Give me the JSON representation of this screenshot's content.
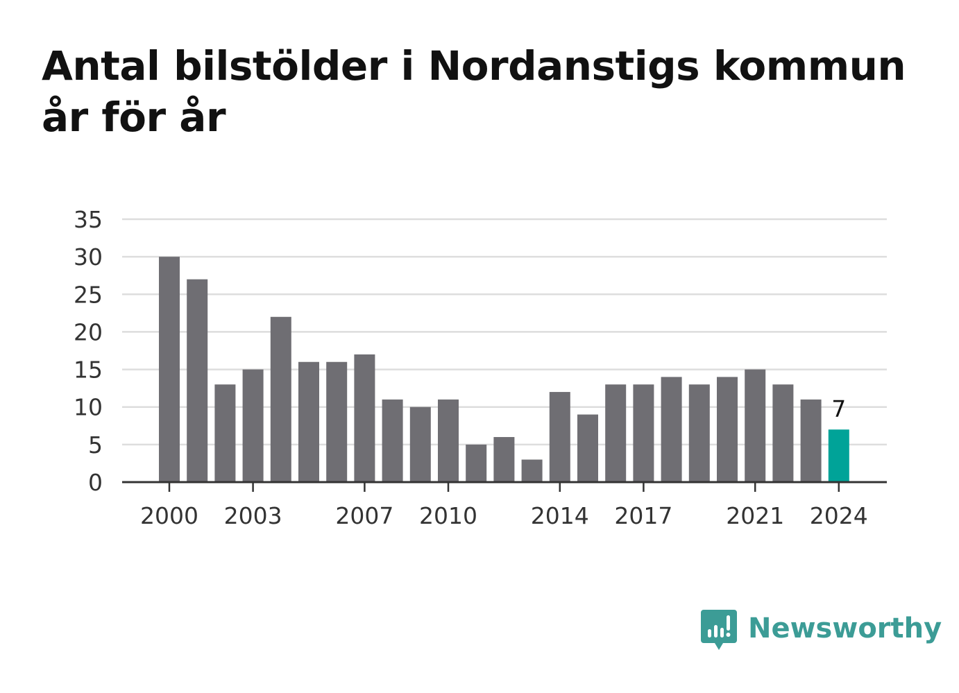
{
  "header": {
    "title_line1": "Antal bilstölder i Nordanstigs kommun",
    "title_line2": "år för år"
  },
  "brand": {
    "name": "Newsworthy",
    "icon": "newsworthy-logo-icon",
    "color": "#3c9c96"
  },
  "chart_data": {
    "type": "bar",
    "title": "Antal bilstölder i Nordanstigs kommun år för år",
    "xlabel": "",
    "ylabel": "",
    "categories": [
      "2000",
      "2001",
      "2002",
      "2003",
      "2004",
      "2005",
      "2006",
      "2007",
      "2008",
      "2009",
      "2010",
      "2011",
      "2012",
      "2013",
      "2014",
      "2015",
      "2016",
      "2017",
      "2018",
      "2019",
      "2020",
      "2021",
      "2022",
      "2023",
      "2024"
    ],
    "values": [
      30,
      27,
      13,
      15,
      22,
      16,
      16,
      17,
      11,
      10,
      11,
      5,
      6,
      3,
      12,
      9,
      13,
      13,
      14,
      13,
      14,
      15,
      13,
      11,
      7
    ],
    "ylim": [
      0,
      35
    ],
    "yticks": [
      "0",
      "5",
      "10",
      "15",
      "20",
      "25",
      "30",
      "35"
    ],
    "xtick_labels": [
      "2000",
      "2003",
      "2007",
      "2010",
      "2014",
      "2017",
      "2021",
      "2024"
    ],
    "highlight": {
      "category": "2024",
      "label": "7",
      "color": "#00a398"
    },
    "bar_color": "#6f6e73",
    "grid": true,
    "legend": "none"
  }
}
